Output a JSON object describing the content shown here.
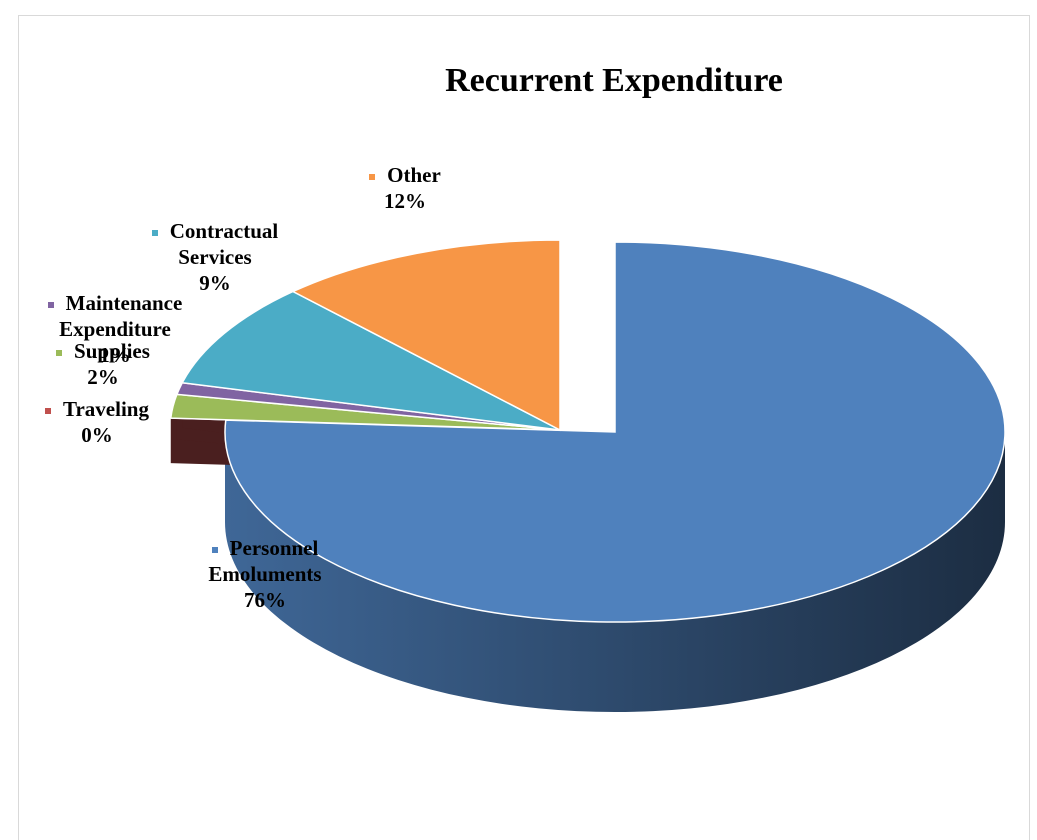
{
  "chart_data": {
    "type": "pie",
    "title": "Recurrent Expenditure",
    "categories": [
      "Personnel Emoluments",
      "Traveling",
      "Supplies",
      "Maintenance Expenditure",
      "Contractual Services",
      "Other"
    ],
    "values": [
      76,
      0,
      2,
      1,
      9,
      12
    ],
    "value_labels": [
      "76%",
      "0%",
      "2%",
      "1%",
      "9%",
      "12%"
    ],
    "colors": [
      "#4f81bd",
      "#c0504d",
      "#9bbb59",
      "#8064a2",
      "#4bacc6",
      "#f79646"
    ]
  }
}
